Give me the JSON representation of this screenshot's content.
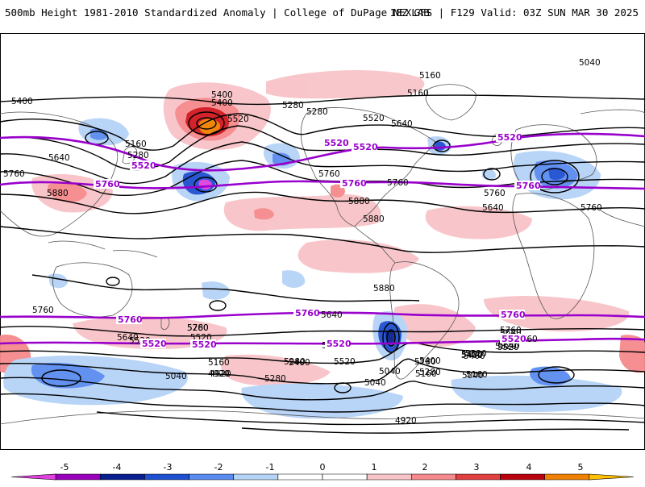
{
  "header": {
    "title": "500mb Height 1981-2010 Standardized Anomaly | College of DuPage NEXLAB",
    "run_info": "18Z GFS | F129 Valid: 03Z SUN MAR 30 2025"
  },
  "map": {
    "projection": "global-equirectangular",
    "background": "#ffffff",
    "coastline_color": "#555555",
    "contour_color": "#000000",
    "highlight_contour_color": "#9900cc",
    "black_contour_labels": [
      "5040",
      "5160",
      "5160",
      "5400",
      "5280",
      "5520",
      "5400",
      "5280",
      "5520",
      "5640",
      "5400",
      "5160",
      "5280",
      "5640",
      "5760",
      "5880",
      "5760",
      "5760",
      "5880",
      "5880",
      "5880",
      "5760",
      "5760",
      "5640",
      "5640",
      "5760",
      "5280",
      "5520",
      "5400",
      "5160",
      "5040",
      "4920",
      "5280",
      "5040",
      "5160",
      "5400",
      "5520",
      "5640",
      "5760",
      "5040",
      "4920",
      "4920",
      "5760",
      "5640",
      "5520",
      "5400",
      "5280",
      "5520",
      "5400",
      "5280",
      "5160",
      "5040",
      "5400",
      "5520",
      "5640",
      "5760",
      "5520",
      "5400",
      "5280"
    ],
    "purple_contour_labels": [
      "5520",
      "5520",
      "5520",
      "5520",
      "5760",
      "5760",
      "5760",
      "5760",
      "5760",
      "5520",
      "5520",
      "5520",
      "5520",
      "5760"
    ]
  },
  "colorbar": {
    "tick_labels": [
      "-5",
      "-4",
      "-3",
      "-2",
      "-1",
      "0",
      "1",
      "2",
      "3",
      "4",
      "5"
    ],
    "colors": [
      "#e040e0",
      "#9900bb",
      "#0a1f8f",
      "#1e50d0",
      "#5a8cf0",
      "#b5d2f7",
      "#ffffff",
      "#ffffff",
      "#f8c4c8",
      "#f58a8c",
      "#e04040",
      "#b8000e",
      "#f08000",
      "#ffc000"
    ]
  }
}
